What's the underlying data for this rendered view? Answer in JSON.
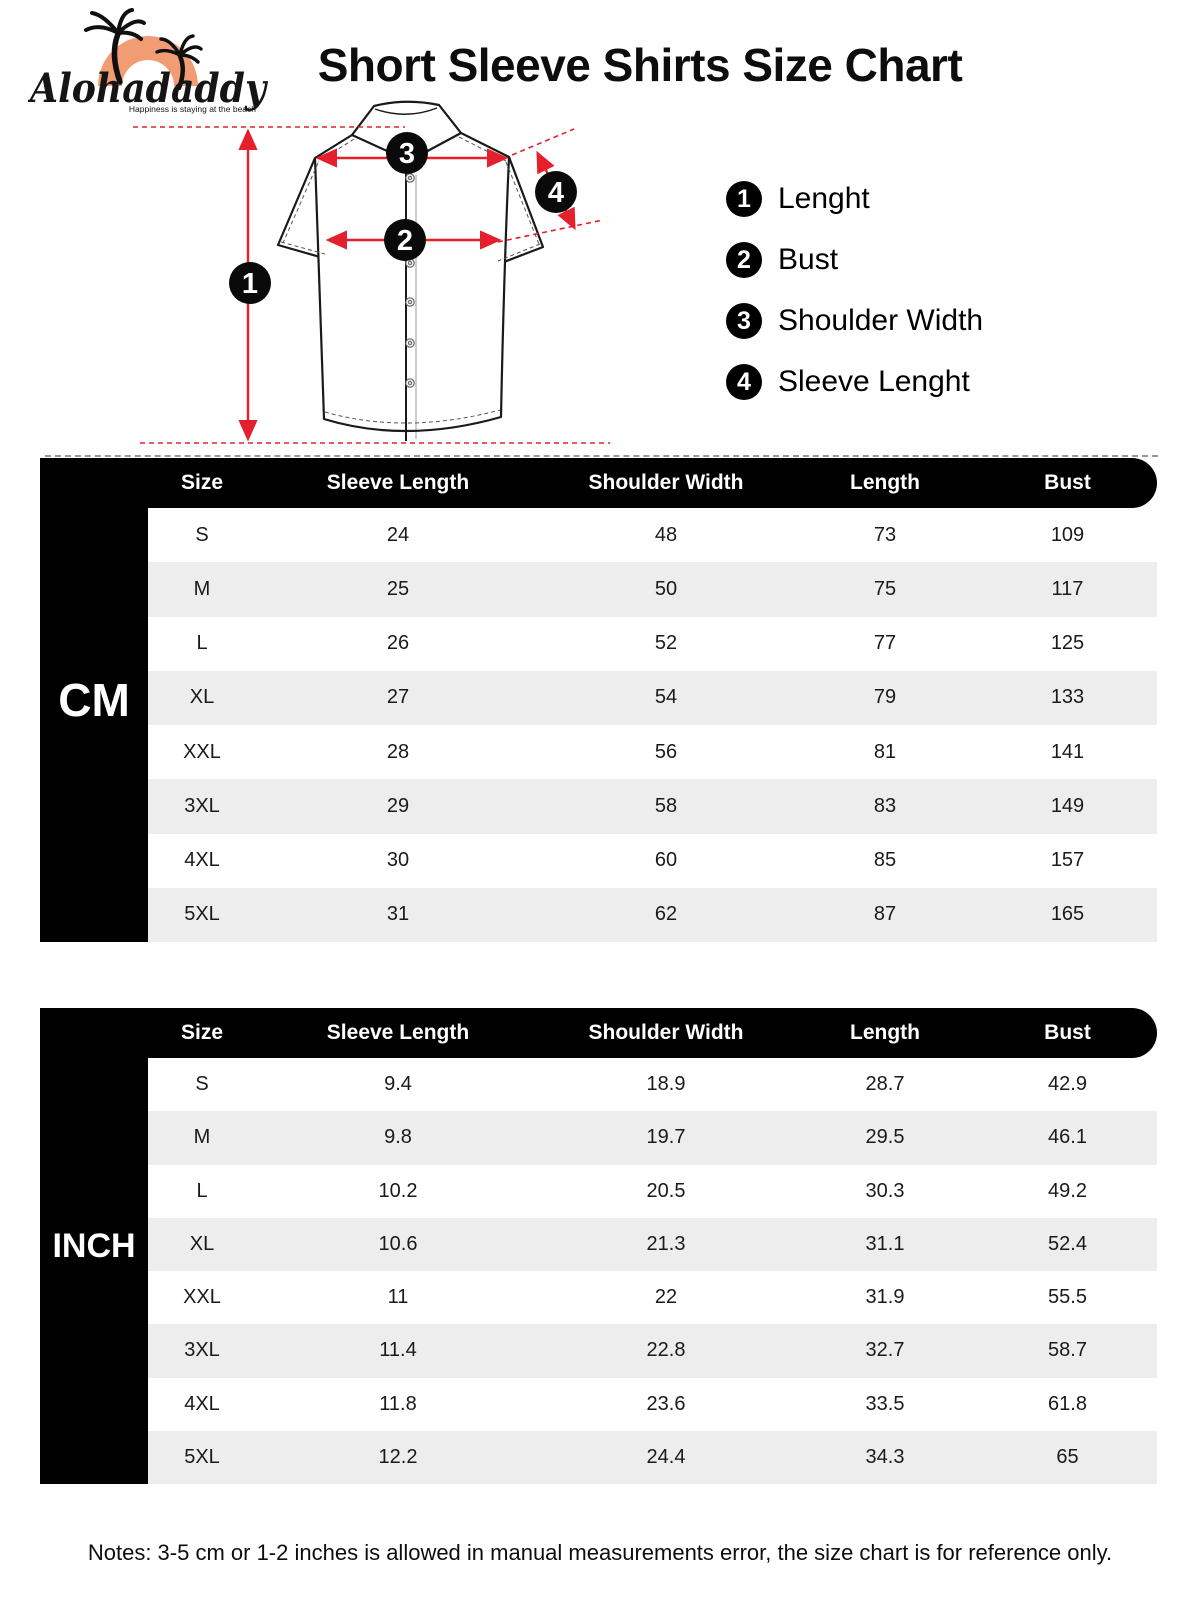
{
  "logo": {
    "brand": "Alohadaddy",
    "tagline": "Happiness is staying at the beach"
  },
  "title": "Short Sleeve Shirts Size Chart",
  "legend": {
    "items": [
      {
        "num": "1",
        "label": "Lenght"
      },
      {
        "num": "2",
        "label": "Bust"
      },
      {
        "num": "3",
        "label": "Shoulder Width"
      },
      {
        "num": "4",
        "label": "Sleeve Lenght"
      }
    ]
  },
  "diagram": {
    "badges": [
      "1",
      "2",
      "3",
      "4"
    ]
  },
  "cm_table": {
    "unit_label": "CM",
    "headers": [
      "Size",
      "Sleeve Length",
      "Shoulder Width",
      "Length",
      "Bust"
    ],
    "rows": [
      [
        "S",
        "24",
        "48",
        "73",
        "109"
      ],
      [
        "M",
        "25",
        "50",
        "75",
        "117"
      ],
      [
        "L",
        "26",
        "52",
        "77",
        "125"
      ],
      [
        "XL",
        "27",
        "54",
        "79",
        "133"
      ],
      [
        "XXL",
        "28",
        "56",
        "81",
        "141"
      ],
      [
        "3XL",
        "29",
        "58",
        "83",
        "149"
      ],
      [
        "4XL",
        "30",
        "60",
        "85",
        "157"
      ],
      [
        "5XL",
        "31",
        "62",
        "87",
        "165"
      ]
    ]
  },
  "inch_table": {
    "unit_label": "INCH",
    "headers": [
      "Size",
      "Sleeve Length",
      "Shoulder Width",
      "Length",
      "Bust"
    ],
    "rows": [
      [
        "S",
        "9.4",
        "18.9",
        "28.7",
        "42.9"
      ],
      [
        "M",
        "9.8",
        "19.7",
        "29.5",
        "46.1"
      ],
      [
        "L",
        "10.2",
        "20.5",
        "30.3",
        "49.2"
      ],
      [
        "XL",
        "10.6",
        "21.3",
        "31.1",
        "52.4"
      ],
      [
        "XXL",
        "11",
        "22",
        "31.9",
        "55.5"
      ],
      [
        "3XL",
        "11.4",
        "22.8",
        "32.7",
        "58.7"
      ],
      [
        "4XL",
        "11.8",
        "23.6",
        "33.5",
        "61.8"
      ],
      [
        "5XL",
        "12.2",
        "24.4",
        "34.3",
        "65"
      ]
    ]
  },
  "notes": "Notes: 3-5 cm or 1-2 inches is allowed in manual measurements error, the size chart is for reference only.",
  "colors": {
    "accent_red": "#e4202c",
    "sun_orange": "#f19c72",
    "stripe_gray": "#ededed"
  }
}
